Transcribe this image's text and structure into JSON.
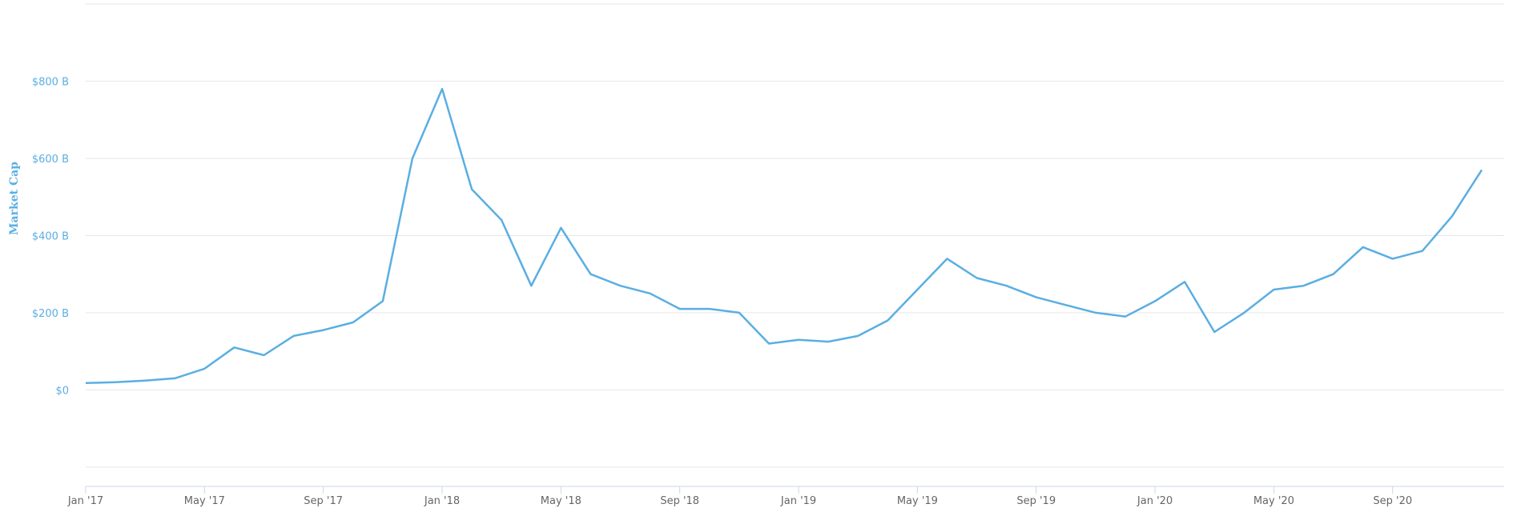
{
  "chart_data": {
    "type": "line",
    "ylabel": "Market Cap",
    "ylim": [
      -250,
      1000
    ],
    "y_ticks": [
      {
        "value": 0,
        "label": "$0"
      },
      {
        "value": 200,
        "label": "$200 B"
      },
      {
        "value": 400,
        "label": "$400 B"
      },
      {
        "value": 600,
        "label": "$600 B"
      },
      {
        "value": 800,
        "label": "$800 B"
      }
    ],
    "x_ticks": [
      "Jan '17",
      "May '17",
      "Sep '17",
      "Jan '18",
      "May '18",
      "Sep '18",
      "Jan '19",
      "May '19",
      "Sep '19",
      "Jan '20",
      "May '20",
      "Sep '20"
    ],
    "grid": true,
    "line_color": "#5aaee3",
    "series": [
      {
        "x": [
          "Jan '17",
          "Feb '17",
          "Mar '17",
          "Apr '17",
          "May '17",
          "Jun '17",
          "Jul '17",
          "Aug '17",
          "Sep '17",
          "Oct '17",
          "Nov '17",
          "Dec '17",
          "Jan '18",
          "Feb '18",
          "Mar '18",
          "Apr '18",
          "May '18",
          "Jun '18",
          "Jul '18",
          "Aug '18",
          "Sep '18",
          "Oct '18",
          "Nov '18",
          "Dec '18",
          "Jan '19",
          "Feb '19",
          "Mar '19",
          "Apr '19",
          "May '19",
          "Jun '19",
          "Jul '19",
          "Aug '19",
          "Sep '19",
          "Oct '19",
          "Nov '19",
          "Dec '19",
          "Jan '20",
          "Feb '20",
          "Mar '20",
          "Apr '20",
          "May '20",
          "Jun '20",
          "Jul '20",
          "Aug '20",
          "Sep '20",
          "Oct '20",
          "Nov '20",
          "Dec '20"
        ],
        "values": [
          18,
          20,
          24,
          30,
          55,
          110,
          90,
          140,
          155,
          175,
          230,
          600,
          780,
          520,
          440,
          270,
          420,
          300,
          270,
          250,
          210,
          210,
          200,
          120,
          130,
          125,
          140,
          180,
          260,
          340,
          290,
          270,
          240,
          220,
          200,
          190,
          230,
          280,
          150,
          200,
          260,
          270,
          300,
          370,
          340,
          360,
          450,
          570
        ]
      }
    ]
  }
}
